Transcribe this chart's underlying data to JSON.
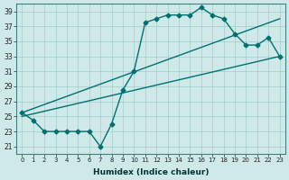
{
  "xlabel": "Humidex (Indice chaleur)",
  "ylabel": "",
  "bg_color": "#cfe9e9",
  "line_color": "#007070",
  "xlim": [
    -0.5,
    23.5
  ],
  "ylim": [
    20.0,
    40.0
  ],
  "yticks": [
    21,
    23,
    25,
    27,
    29,
    31,
    33,
    35,
    37,
    39
  ],
  "xticks": [
    0,
    1,
    2,
    3,
    4,
    5,
    6,
    7,
    8,
    9,
    10,
    11,
    12,
    13,
    14,
    15,
    16,
    17,
    18,
    19,
    20,
    21,
    22,
    23
  ],
  "main_x": [
    0,
    1,
    2,
    3,
    4,
    5,
    6,
    7,
    8,
    9,
    10,
    11,
    12,
    13,
    14,
    15,
    16,
    17,
    18,
    19,
    20,
    21,
    22,
    23
  ],
  "main_y": [
    25.5,
    24.5,
    23,
    23,
    23,
    23,
    23,
    21,
    24,
    28.5,
    31,
    37.5,
    38,
    38.5,
    38.5,
    38.5,
    39.5,
    38.5,
    38,
    36,
    34.5,
    34.5,
    35.5,
    33
  ],
  "line1_x": [
    0,
    23
  ],
  "line1_y": [
    25.5,
    38.0
  ],
  "line2_x": [
    0,
    23
  ],
  "line2_y": [
    25.0,
    33.0
  ],
  "grid_color": "#a0cccc",
  "spine_color": "#408080"
}
